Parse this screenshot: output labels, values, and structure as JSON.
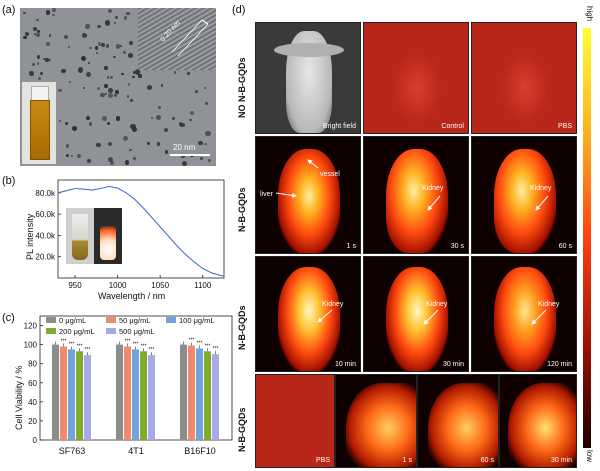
{
  "panel_labels": {
    "a": "(a)",
    "b": "(b)",
    "c": "(c)",
    "d": "(d)"
  },
  "panel_a": {
    "lattice_label": "0.20 nm",
    "scale_bar": "20 nm"
  },
  "panel_b": {
    "chart_data": {
      "type": "line",
      "xlabel": "Wavelength / nm",
      "ylabel": "PL intensity",
      "xticks": [
        "950",
        "1000",
        "1050",
        "1100"
      ],
      "yticks": [
        "20.0k",
        "40.0k",
        "60.0k",
        "80.0k"
      ],
      "xlim": [
        930,
        1125
      ],
      "ylim": [
        0,
        92000
      ],
      "color": "#4a6fd8",
      "x": [
        930,
        940,
        950,
        960,
        970,
        980,
        990,
        1000,
        1010,
        1020,
        1030,
        1040,
        1050,
        1060,
        1070,
        1080,
        1090,
        1100,
        1110,
        1120,
        1125
      ],
      "y": [
        80000,
        82000,
        84000,
        83500,
        82500,
        84000,
        86000,
        84500,
        80000,
        74000,
        66000,
        57000,
        48000,
        39000,
        30000,
        22000,
        15000,
        9000,
        5000,
        2500,
        1800
      ]
    }
  },
  "panel_c": {
    "chart_data": {
      "type": "bar",
      "ylabel": "Cell Viability / %",
      "categories": [
        "SF763",
        "4T1",
        "B16F10"
      ],
      "yticks": [
        "0",
        "20",
        "40",
        "60",
        "80",
        "100",
        "120"
      ],
      "ylim": [
        0,
        130
      ],
      "series": [
        {
          "name": "0 μg/mL",
          "color": "#8c8c8c",
          "values": [
            100,
            100,
            100
          ]
        },
        {
          "name": "50 μg/mL",
          "color": "#f08a6e",
          "values": [
            98,
            98,
            99
          ]
        },
        {
          "name": "100 μg/mL",
          "color": "#6fa3dc",
          "values": [
            95,
            95,
            96
          ]
        },
        {
          "name": "200 μg/mL",
          "color": "#7faa2e",
          "values": [
            93,
            93,
            93
          ]
        },
        {
          "name": "500 μg/mL",
          "color": "#a7a8e6",
          "values": [
            89,
            89,
            90
          ]
        }
      ],
      "significance": "***"
    }
  },
  "panel_d": {
    "colorbar": {
      "high": "high",
      "low": "low"
    },
    "row_labels": [
      "NO N-B-GQDs",
      "N-B-GQDs",
      "N-B-GQDs",
      "N-B-GQDs"
    ],
    "rows": [
      [
        "Bright field",
        "Control",
        "PBS"
      ],
      [
        "1 s",
        "30 s",
        "60 s"
      ],
      [
        "10 min",
        "30 min",
        "120 min"
      ],
      [
        "PBS",
        "1 s",
        "60 s",
        "30 min"
      ]
    ],
    "annotations": {
      "vessel": "vessel",
      "liver": "liver",
      "kidney": "Kidney"
    }
  }
}
